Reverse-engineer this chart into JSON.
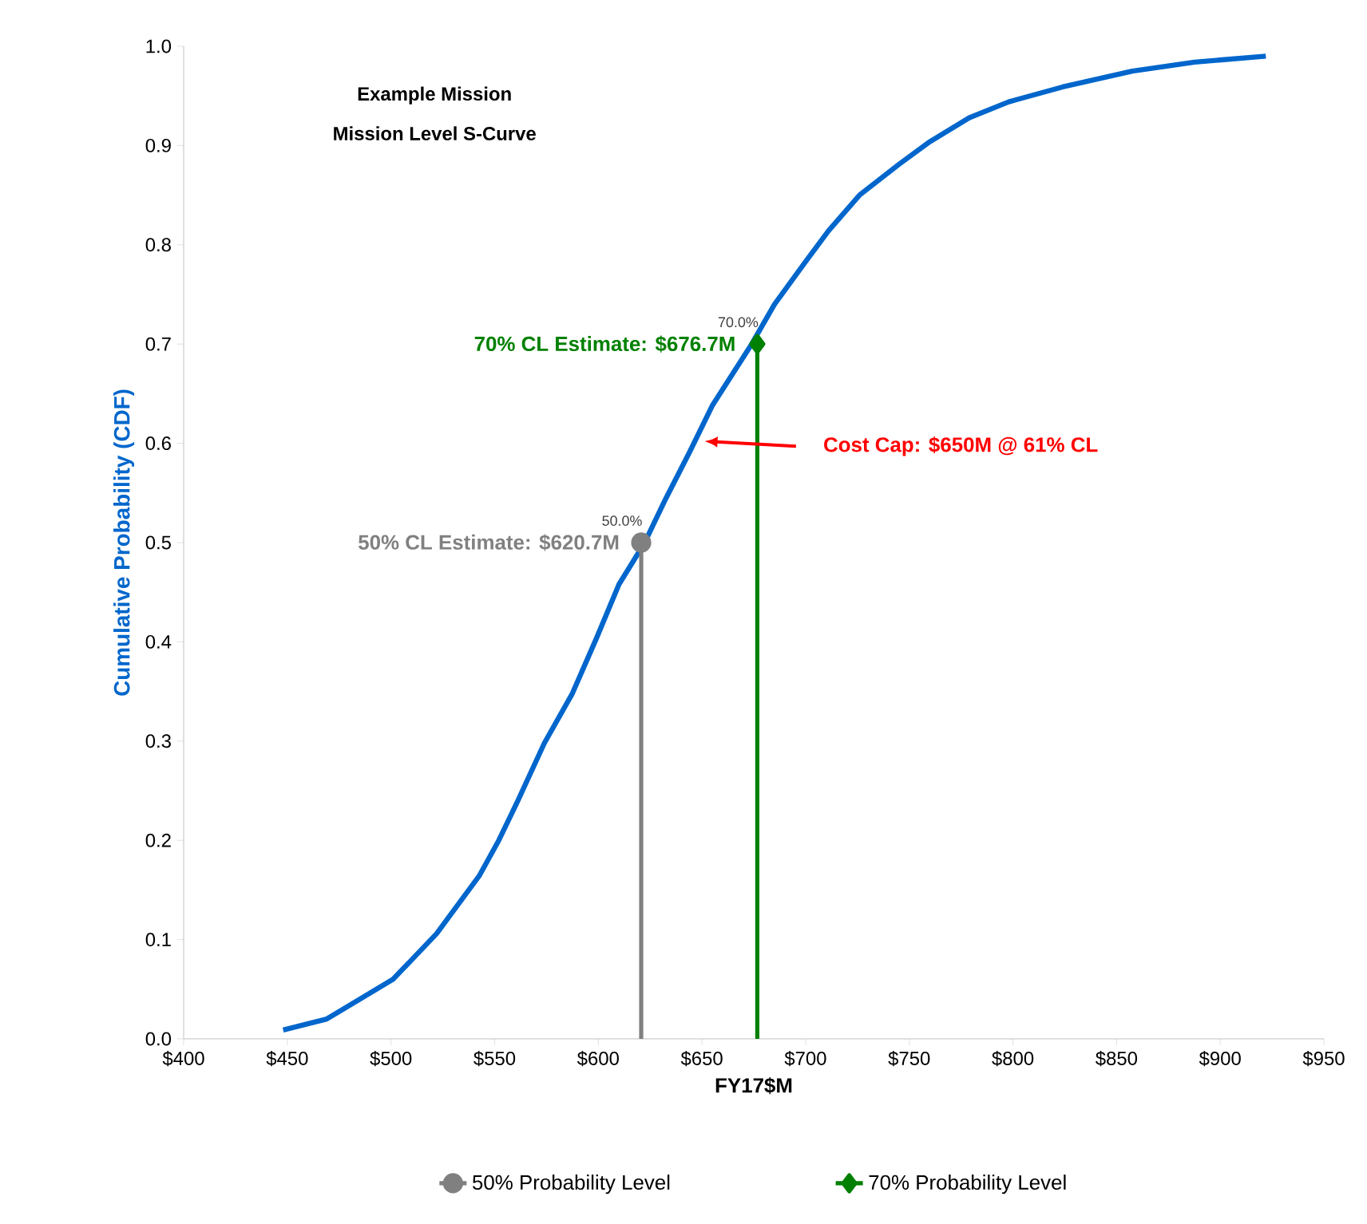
{
  "chart_data": {
    "type": "line",
    "title": "Example Mission",
    "subtitle": "Mission Level S-Curve",
    "xlabel": "FY17$M",
    "ylabel": "Cumulative Probability (CDF)",
    "xlim": [
      400,
      950
    ],
    "ylim": [
      0,
      1
    ],
    "xticks": [
      {
        "value": 400,
        "label": "$400"
      },
      {
        "value": 450,
        "label": "$450"
      },
      {
        "value": 500,
        "label": "$500"
      },
      {
        "value": 550,
        "label": "$550"
      },
      {
        "value": 600,
        "label": "$600"
      },
      {
        "value": 650,
        "label": "$650"
      },
      {
        "value": 700,
        "label": "$700"
      },
      {
        "value": 750,
        "label": "$750"
      },
      {
        "value": 800,
        "label": "$800"
      },
      {
        "value": 850,
        "label": "$850"
      },
      {
        "value": 900,
        "label": "$900"
      },
      {
        "value": 950,
        "label": "$950"
      }
    ],
    "yticks": [
      {
        "value": 0,
        "label": "0.0"
      },
      0.1,
      0.2,
      0.3,
      0.4,
      0.5,
      0.6,
      0.7,
      0.8,
      0.9,
      {
        "value": 1,
        "label": "1.0"
      }
    ],
    "series": [
      {
        "color": "#0066cc",
        "marker": "none",
        "x": [
          448,
          469,
          501,
          522,
          542.5,
          552,
          561,
          574,
          587.5,
          599,
          610,
          622.4,
          632.5,
          644,
          655,
          674,
          685,
          700,
          711,
          726,
          745,
          760,
          779,
          798,
          824,
          857.6,
          887.6,
          922
        ],
        "values": [
          0.009,
          0.02,
          0.06,
          0.106,
          0.164,
          0.2,
          0.239,
          0.298,
          0.348,
          0.403,
          0.458,
          0.5,
          0.544,
          0.591,
          0.638,
          0.7,
          0.74,
          0.783,
          0.814,
          0.85,
          0.881,
          0.904,
          0.928,
          0.944,
          0.959,
          0.975,
          0.984,
          0.99
        ]
      },
      {
        "name": "50% Probability Level",
        "color": "#808080",
        "marker": "circle",
        "x": [
          620.7,
          620.7
        ],
        "values": [
          0,
          0.5
        ],
        "value_labels": [
          null,
          "50.0%"
        ]
      },
      {
        "name": "70% Probability Level",
        "color": "#008000",
        "marker": "diamond",
        "x": [
          676.7,
          676.7
        ],
        "values": [
          0,
          0.7
        ],
        "value_labels": [
          null,
          "70.0%"
        ]
      }
    ],
    "annotations": [
      {
        "text": "50% CL Estimate: $620.7M",
        "x": 620.7,
        "y": 0.5
      },
      {
        "text": "70% CL Estimate: $676.7M",
        "x": 676.7,
        "y": 0.7
      },
      "Cost Cap: $650M @ 61% CL"
    ],
    "legend": "bottom",
    "grid": false
  }
}
